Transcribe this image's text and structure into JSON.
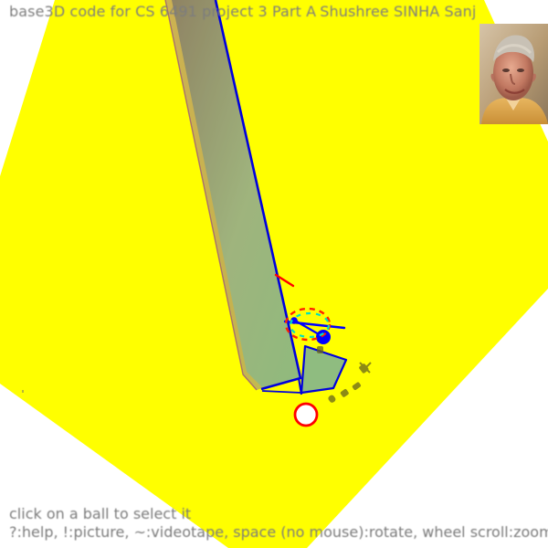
{
  "window": {
    "title": "base3D code for CS 6491 project 3 Part A",
    "author": "Shushree SINHA Sanjana"
  },
  "footer": {
    "status": "click on a ball to select it",
    "help": "?:help, !:picture, ~:videotape, space (no mouse):rotate, wheel scroll:zoom"
  },
  "colors": {
    "background": "#ffffff",
    "floor": "#ffff00",
    "tube_dark": "#6f7b5e",
    "tube_light": "#a3c281",
    "edge": "#0000dd",
    "selected_ball": "#ff0000",
    "handle_ball": "#0000ff",
    "text": "#7d7d7d"
  },
  "icons": {
    "portrait": "person-photo",
    "selection": "ring-marker"
  }
}
